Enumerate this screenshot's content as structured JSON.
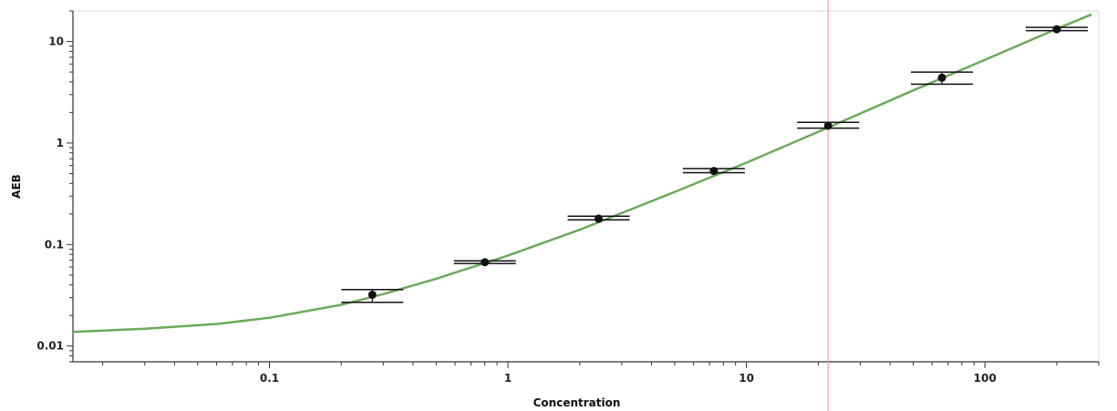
{
  "chart_data": {
    "type": "scatter",
    "xlabel": "Concentration",
    "ylabel": "AEB",
    "x_scale": "log",
    "y_scale": "log",
    "xlim": [
      0.015,
      300
    ],
    "ylim": [
      0.007,
      20
    ],
    "x_ticks": [
      0.1,
      1,
      10,
      100
    ],
    "x_tick_labels": [
      "0.1",
      "1",
      "10",
      "100"
    ],
    "y_ticks": [
      0.01,
      0.1,
      1,
      10
    ],
    "y_tick_labels": [
      "0.01",
      "0.1",
      "1",
      "10"
    ],
    "grid": false,
    "reference_line_x": 22,
    "colors": {
      "fit": "#6aaa5a",
      "points": "#111111",
      "reference": "#e0a0a0"
    },
    "series": [
      {
        "points": [
          {
            "x": 0.27,
            "y": 0.032,
            "y_low": 0.027,
            "y_high": 0.036
          },
          {
            "x": 0.8,
            "y": 0.067,
            "y_low": 0.065,
            "y_high": 0.069
          },
          {
            "x": 2.4,
            "y": 0.18,
            "y_low": 0.175,
            "y_high": 0.19
          },
          {
            "x": 7.3,
            "y": 0.53,
            "y_low": 0.51,
            "y_high": 0.56
          },
          {
            "x": 22,
            "y": 1.48,
            "y_low": 1.4,
            "y_high": 1.6
          },
          {
            "x": 66,
            "y": 4.4,
            "y_low": 3.8,
            "y_high": 5.0
          },
          {
            "x": 200,
            "y": 13.2,
            "y_low": 12.8,
            "y_high": 13.8
          }
        ]
      }
    ],
    "fit_curve": {
      "x": [
        0.015,
        0.03,
        0.06,
        0.1,
        0.2,
        0.3,
        0.5,
        1,
        2,
        5,
        10,
        22,
        50,
        100,
        200,
        280
      ],
      "y": [
        0.0138,
        0.0148,
        0.0165,
        0.019,
        0.0255,
        0.0325,
        0.046,
        0.078,
        0.14,
        0.33,
        0.64,
        1.42,
        3.3,
        6.6,
        13.3,
        18.5
      ]
    }
  }
}
